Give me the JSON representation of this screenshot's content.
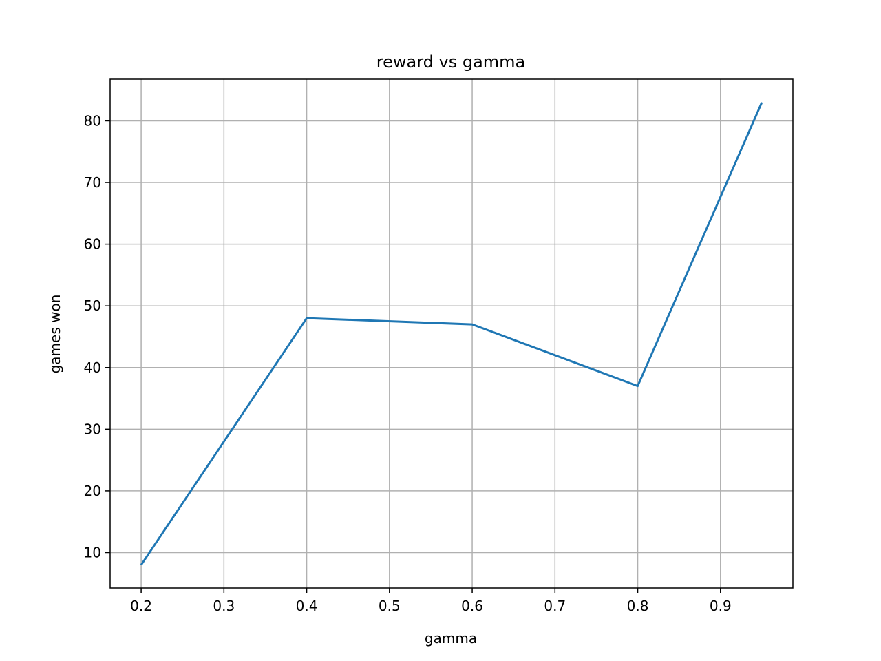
{
  "chart_data": {
    "type": "line",
    "title": "reward vs gamma",
    "xlabel": "gamma",
    "ylabel": "games won",
    "x": [
      0.2,
      0.4,
      0.6,
      0.8,
      0.95
    ],
    "series": [
      {
        "values": [
          8,
          48,
          47,
          37,
          83
        ]
      }
    ],
    "xlim": [
      0.1625,
      0.9875
    ],
    "ylim": [
      4.25,
      86.75
    ],
    "xticks": [
      0.2,
      0.3,
      0.4,
      0.5,
      0.6,
      0.7,
      0.8,
      0.9
    ],
    "xtick_labels": [
      "0.2",
      "0.3",
      "0.4",
      "0.5",
      "0.6",
      "0.7",
      "0.8",
      "0.9"
    ],
    "yticks": [
      10,
      20,
      30,
      40,
      50,
      60,
      70,
      80
    ],
    "ytick_labels": [
      "10",
      "20",
      "30",
      "40",
      "50",
      "60",
      "70",
      "80"
    ],
    "grid": true,
    "colors": {
      "line": "#1f77b4",
      "grid": "#b0b0b0",
      "axes": "#000000"
    }
  }
}
